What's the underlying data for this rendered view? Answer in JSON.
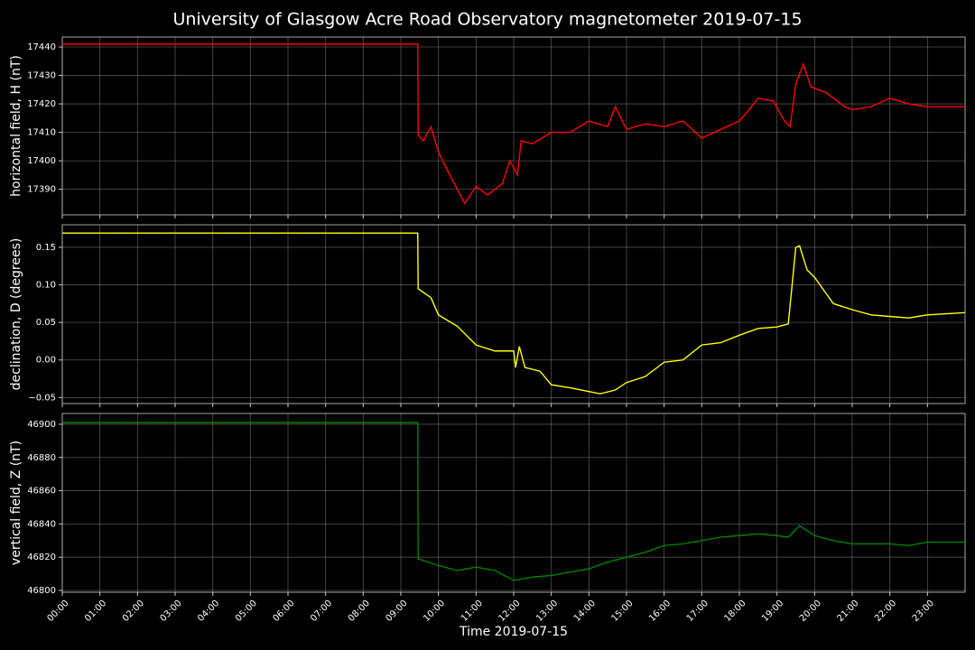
{
  "chart_data": [
    {
      "type": "line",
      "title": "University of Glasgow Acre Road Observatory magnetometer 2019-07-15",
      "ylabel": "horizontal field, H (nT)",
      "grid": true,
      "xlim": [
        0,
        24
      ],
      "ylim": [
        17381,
        17443.5
      ],
      "yticks": [
        17390,
        17400,
        17410,
        17420,
        17430,
        17440
      ],
      "x": [
        0,
        9.45,
        9.46,
        9.6,
        9.8,
        10,
        10.3,
        10.7,
        11,
        11.3,
        11.7,
        11.9,
        12.1,
        12.2,
        12.5,
        13,
        13.5,
        14,
        14.5,
        14.7,
        15,
        15.5,
        16,
        16.5,
        17,
        17.5,
        18,
        18.2,
        18.5,
        18.9,
        19.2,
        19.35,
        19.5,
        19.7,
        19.9,
        20.3,
        20.8,
        21,
        21.5,
        22,
        22.5,
        23,
        24
      ],
      "series": [
        {
          "color": "#ff0000",
          "values": [
            17441,
            17441,
            17409,
            17407,
            17412,
            17403,
            17395,
            17385,
            17391,
            17388,
            17392,
            17400,
            17395,
            17407,
            17406,
            17410,
            17410,
            17414,
            17412,
            17419,
            17411,
            17413,
            17412,
            17414,
            17408,
            17411,
            17414,
            17417,
            17422,
            17421,
            17414,
            17412,
            17427,
            17434,
            17426,
            17424,
            17419,
            17418,
            17419,
            17422,
            17420,
            17419,
            17419
          ]
        }
      ]
    },
    {
      "type": "line",
      "ylabel": "declination, D (degrees)",
      "grid": true,
      "xlim": [
        0,
        24
      ],
      "ylim": [
        -0.058,
        0.18
      ],
      "yticks": [
        {
          "value": -0.05,
          "label": "−0.05"
        },
        {
          "value": 0,
          "label": "0.00"
        },
        {
          "value": 0.05,
          "label": "0.05"
        },
        {
          "value": 0.1,
          "label": "0.10"
        },
        {
          "value": 0.15,
          "label": "0.15"
        }
      ],
      "x": [
        0,
        9.45,
        9.46,
        9.8,
        10,
        10.5,
        11,
        11.5,
        12,
        12.05,
        12.15,
        12.3,
        12.7,
        13,
        13.5,
        14,
        14.3,
        14.7,
        15,
        15.5,
        16,
        16.5,
        17,
        17.5,
        18,
        18.5,
        19,
        19.3,
        19.5,
        19.6,
        19.8,
        20,
        20.5,
        21,
        21.5,
        22,
        22.5,
        23,
        24
      ],
      "series": [
        {
          "color": "#ffff00",
          "values": [
            0.169,
            0.169,
            0.095,
            0.083,
            0.06,
            0.045,
            0.02,
            0.012,
            0.012,
            -0.01,
            0.018,
            -0.01,
            -0.015,
            -0.033,
            -0.037,
            -0.042,
            -0.045,
            -0.04,
            -0.03,
            -0.022,
            -0.003,
            0.0,
            0.02,
            0.023,
            0.033,
            0.042,
            0.044,
            0.048,
            0.15,
            0.152,
            0.12,
            0.11,
            0.075,
            0.067,
            0.06,
            0.058,
            0.056,
            0.06,
            0.063
          ]
        }
      ]
    },
    {
      "type": "line",
      "ylabel": "vertical field, Z (nT)",
      "xlabel": "Time 2019-07-15",
      "grid": true,
      "xlim": [
        0,
        24
      ],
      "ylim": [
        46798.9,
        46906.5
      ],
      "yticks": [
        46800,
        46820,
        46840,
        46860,
        46880,
        46900
      ],
      "xticks": [
        {
          "value": 0,
          "label": "00:00"
        },
        {
          "value": 1,
          "label": "01:00"
        },
        {
          "value": 2,
          "label": "02:00"
        },
        {
          "value": 3,
          "label": "03:00"
        },
        {
          "value": 4,
          "label": "04:00"
        },
        {
          "value": 5,
          "label": "05:00"
        },
        {
          "value": 6,
          "label": "06:00"
        },
        {
          "value": 7,
          "label": "07:00"
        },
        {
          "value": 8,
          "label": "08:00"
        },
        {
          "value": 9,
          "label": "09:00"
        },
        {
          "value": 10,
          "label": "10:00"
        },
        {
          "value": 11,
          "label": "11:00"
        },
        {
          "value": 12,
          "label": "12:00"
        },
        {
          "value": 13,
          "label": "13:00"
        },
        {
          "value": 14,
          "label": "14:00"
        },
        {
          "value": 15,
          "label": "15:00"
        },
        {
          "value": 16,
          "label": "16:00"
        },
        {
          "value": 17,
          "label": "17:00"
        },
        {
          "value": 18,
          "label": "18:00"
        },
        {
          "value": 19,
          "label": "19:00"
        },
        {
          "value": 20,
          "label": "20:00"
        },
        {
          "value": 21,
          "label": "21:00"
        },
        {
          "value": 22,
          "label": "22:00"
        },
        {
          "value": 23,
          "label": "23:00"
        }
      ],
      "x": [
        0,
        9.45,
        9.46,
        10,
        10.5,
        11,
        11.5,
        12,
        12.5,
        13,
        13.5,
        14,
        14.5,
        15,
        15.5,
        16,
        16.5,
        17,
        17.5,
        18,
        18.5,
        19,
        19.3,
        19.6,
        19.8,
        20,
        20.5,
        21,
        21.5,
        22,
        22.5,
        23,
        24
      ],
      "series": [
        {
          "color": "#008000",
          "values": [
            46901,
            46901,
            46819,
            46815,
            46812,
            46814,
            46812,
            46806,
            46808,
            46809,
            46811,
            46813,
            46817,
            46820,
            46823,
            46827,
            46828,
            46830,
            46832,
            46833,
            46834,
            46833,
            46832,
            46839,
            46836,
            46833,
            46830,
            46828,
            46828,
            46828,
            46827,
            46829,
            46829
          ]
        }
      ]
    }
  ]
}
